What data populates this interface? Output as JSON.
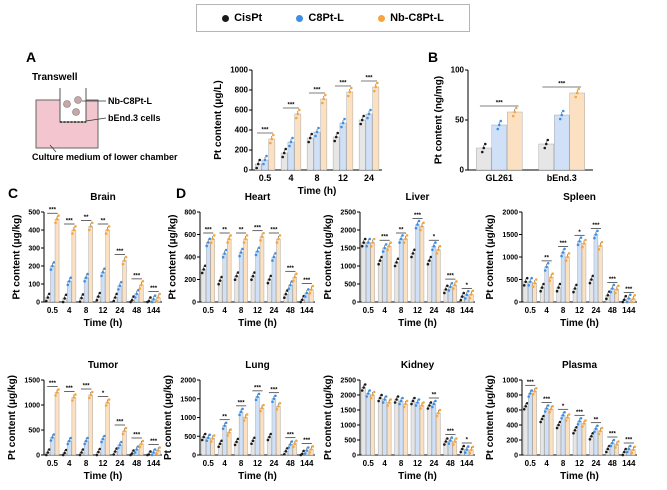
{
  "legend": {
    "items": [
      {
        "label": "CisPt",
        "color": "#1a1a1a"
      },
      {
        "label": "C8Pt-L",
        "color": "#3d8ee6"
      },
      {
        "label": "Nb-C8Pt-L",
        "color": "#f5a53c"
      }
    ]
  },
  "colors": {
    "cispt_bar": "#e6e6e6",
    "c8pt_bar": "#cfe0f7",
    "nb_bar": "#fbe1c2",
    "chamber": "#f3c6cf",
    "dots": "#8a8a8a"
  },
  "panels": {
    "A": "A",
    "B": "B",
    "C": "C",
    "D": "D"
  },
  "transwell": {
    "title": "Transwell",
    "label_np": "Nb-C8Pt-L",
    "label_cells": "bEnd.3 cells",
    "label_medium": "Culture medium of lower chamber"
  },
  "chart_data": [
    {
      "id": "A",
      "type": "bar",
      "title": "",
      "categories": [
        "0.5",
        "4",
        "8",
        "12",
        "24"
      ],
      "xlabel": "Time (h)",
      "ylabel": "Pt content (μg/L)",
      "ylim": [
        0,
        1000
      ],
      "yticks": [
        0,
        200,
        400,
        600,
        800,
        1000
      ],
      "series": [
        {
          "name": "CisPt",
          "values": [
            60,
            170,
            320,
            330,
            500
          ]
        },
        {
          "name": "C8Pt-L",
          "values": [
            100,
            280,
            380,
            470,
            560
          ]
        },
        {
          "name": "Nb-C8Pt-L",
          "values": [
            310,
            560,
            710,
            780,
            830
          ]
        }
      ],
      "significance": [
        "***",
        "***",
        "***",
        "***",
        "***"
      ]
    },
    {
      "id": "B",
      "type": "bar",
      "title": "",
      "categories": [
        "GL261",
        "bEnd.3"
      ],
      "xlabel": "",
      "ylabel": "Pt content (ng/mg)",
      "ylim": [
        0,
        100
      ],
      "yticks": [
        0,
        50,
        100
      ],
      "series": [
        {
          "name": "CisPt",
          "values": [
            22,
            26
          ]
        },
        {
          "name": "C8Pt-L",
          "values": [
            45,
            55
          ]
        },
        {
          "name": "Nb-C8Pt-L",
          "values": [
            58,
            77
          ]
        }
      ],
      "significance": [
        "***",
        "***"
      ]
    },
    {
      "id": "Brain",
      "type": "bar",
      "title": "Brain",
      "categories": [
        "0.5",
        "4",
        "8",
        "12",
        "24",
        "48",
        "144"
      ],
      "xlabel": "Time (h)",
      "ylabel": "Pt content (μg/kg)",
      "ylim": [
        0,
        500
      ],
      "yticks": [
        0,
        100,
        200,
        300,
        400,
        500
      ],
      "series": [
        {
          "name": "CisPt",
          "values": [
            25,
            20,
            22,
            30,
            25,
            10,
            5
          ]
        },
        {
          "name": "C8Pt-L",
          "values": [
            200,
            115,
            135,
            165,
            90,
            45,
            15
          ]
        },
        {
          "name": "Nb-C8Pt-L",
          "values": [
            460,
            400,
            420,
            400,
            230,
            95,
            25
          ]
        }
      ],
      "significance": [
        "***",
        "***",
        "**",
        "**",
        "***",
        "***",
        "***"
      ]
    },
    {
      "id": "Heart",
      "type": "bar",
      "title": "Heart",
      "categories": [
        "0.5",
        "4",
        "8",
        "12",
        "24",
        "48",
        "144"
      ],
      "xlabel": "Time (h)",
      "ylabel": "Pt content (μg/kg)",
      "ylim": [
        0,
        800
      ],
      "yticks": [
        0,
        200,
        400,
        600,
        800
      ],
      "series": [
        {
          "name": "CisPt",
          "values": [
            290,
            190,
            230,
            230,
            200,
            70,
            20
          ]
        },
        {
          "name": "C8Pt-L",
          "values": [
            530,
            430,
            440,
            450,
            400,
            150,
            80
          ]
        },
        {
          "name": "Nb-C8Pt-L",
          "values": [
            560,
            560,
            560,
            580,
            560,
            220,
            110
          ]
        }
      ],
      "significance": [
        "***",
        "**",
        "**",
        "***",
        "***",
        "***",
        "***"
      ]
    },
    {
      "id": "Liver",
      "type": "bar",
      "title": "Liver",
      "categories": [
        "0.5",
        "4",
        "8",
        "12",
        "24",
        "48",
        "144"
      ],
      "xlabel": "Time (h)",
      "ylabel": "Pt content (μg/kg)",
      "ylim": [
        0,
        2500
      ],
      "yticks": [
        0,
        500,
        1000,
        1500,
        2000,
        2500
      ],
      "series": [
        {
          "name": "CisPt",
          "values": [
            1650,
            1150,
            1100,
            1350,
            1150,
            350,
            150
          ]
        },
        {
          "name": "C8Pt-L",
          "values": [
            1650,
            1500,
            1750,
            2150,
            1550,
            420,
            200
          ]
        },
        {
          "name": "Nb-C8Pt-L",
          "values": [
            1650,
            1550,
            1750,
            2100,
            1450,
            470,
            210
          ]
        }
      ],
      "significance": [
        "",
        "***",
        "**",
        "***",
        "*",
        "***",
        "*"
      ]
    },
    {
      "id": "Spleen",
      "type": "bar",
      "title": "Spleen",
      "categories": [
        "0.5",
        "4",
        "8",
        "12",
        "24",
        "48",
        "144"
      ],
      "xlabel": "Time (h)",
      "ylabel": "Pt content (μg/kg)",
      "ylim": [
        0,
        2000
      ],
      "yticks": [
        0,
        500,
        1000,
        1500,
        2000
      ],
      "series": [
        {
          "name": "CisPt",
          "values": [
            450,
            320,
            320,
            300,
            500,
            150,
            50
          ]
        },
        {
          "name": "C8Pt-L",
          "values": [
            450,
            780,
            1100,
            1350,
            1500,
            300,
            80
          ]
        },
        {
          "name": "Nb-C8Pt-L",
          "values": [
            420,
            550,
            1000,
            1300,
            1250,
            280,
            70
          ]
        }
      ],
      "significance": [
        "",
        "**",
        "***",
        "*",
        "***",
        "***",
        "***"
      ]
    },
    {
      "id": "Tumor",
      "type": "bar",
      "title": "Tumor",
      "categories": [
        "0.5",
        "4",
        "8",
        "12",
        "24",
        "48",
        "144"
      ],
      "xlabel": "Time (h)",
      "ylabel": "Pt content (μg/kg)",
      "ylim": [
        0,
        1500
      ],
      "yticks": [
        0,
        500,
        1000,
        1500
      ],
      "series": [
        {
          "name": "CisPt",
          "values": [
            50,
            40,
            50,
            60,
            70,
            30,
            10
          ]
        },
        {
          "name": "C8Pt-L",
          "values": [
            350,
            280,
            280,
            320,
            200,
            110,
            50
          ]
        },
        {
          "name": "Nb-C8Pt-L",
          "values": [
            1250,
            1150,
            1200,
            1050,
            480,
            220,
            90
          ]
        }
      ],
      "significance": [
        "***",
        "***",
        "***",
        "*",
        "***",
        "***",
        "***"
      ]
    },
    {
      "id": "Lung",
      "type": "bar",
      "title": "Lung",
      "categories": [
        "0.5",
        "4",
        "8",
        "12",
        "24",
        "48",
        "144"
      ],
      "xlabel": "Time (h)",
      "ylabel": "Pt content (μg/kg)",
      "ylim": [
        0,
        2000
      ],
      "yticks": [
        0,
        500,
        1000,
        1500,
        2000
      ],
      "series": [
        {
          "name": "CisPt",
          "values": [
            480,
            300,
            350,
            380,
            480,
            100,
            30
          ]
        },
        {
          "name": "C8Pt-L",
          "values": [
            460,
            780,
            1150,
            1550,
            1500,
            280,
            120
          ]
        },
        {
          "name": "Nb-C8Pt-L",
          "values": [
            440,
            600,
            1000,
            1250,
            1300,
            300,
            150
          ]
        }
      ],
      "significance": [
        "",
        "**",
        "***",
        "***",
        "***",
        "***",
        "***"
      ]
    },
    {
      "id": "Kidney",
      "type": "bar",
      "title": "Kidney",
      "categories": [
        "0.5",
        "4",
        "8",
        "12",
        "24",
        "48",
        "144"
      ],
      "xlabel": "Time (h)",
      "ylabel": "Pt content (μg/kg)",
      "ylim": [
        0,
        2500
      ],
      "yticks": [
        0,
        500,
        1000,
        1500,
        2000,
        2500
      ],
      "series": [
        {
          "name": "CisPt",
          "values": [
            2250,
            1900,
            1850,
            1800,
            1650,
            450,
            200
          ]
        },
        {
          "name": "C8Pt-L",
          "values": [
            2050,
            1850,
            1800,
            1750,
            1700,
            480,
            180
          ]
        },
        {
          "name": "Nb-C8Pt-L",
          "values": [
            2000,
            1750,
            1700,
            1650,
            1400,
            450,
            170
          ]
        }
      ],
      "significance": [
        "",
        "",
        "",
        "",
        "**",
        "***",
        "*"
      ]
    },
    {
      "id": "Plasma",
      "type": "bar",
      "title": "Plasma",
      "categories": [
        "0.5",
        "4",
        "8",
        "12",
        "24",
        "48",
        "144"
      ],
      "xlabel": "Time (h)",
      "ylabel": "Pt content (μg/kg)",
      "ylim": [
        0,
        1000
      ],
      "yticks": [
        0,
        200,
        400,
        600,
        800,
        1000
      ],
      "series": [
        {
          "name": "CisPt",
          "values": [
            650,
            480,
            400,
            330,
            250,
            80,
            40
          ]
        },
        {
          "name": "C8Pt-L",
          "values": [
            820,
            620,
            530,
            450,
            350,
            160,
            80
          ]
        },
        {
          "name": "Nb-C8Pt-L",
          "values": [
            850,
            610,
            500,
            420,
            320,
            140,
            70
          ]
        }
      ],
      "significance": [
        "***",
        "***",
        "*",
        "***",
        "**",
        "***",
        "***"
      ]
    }
  ]
}
